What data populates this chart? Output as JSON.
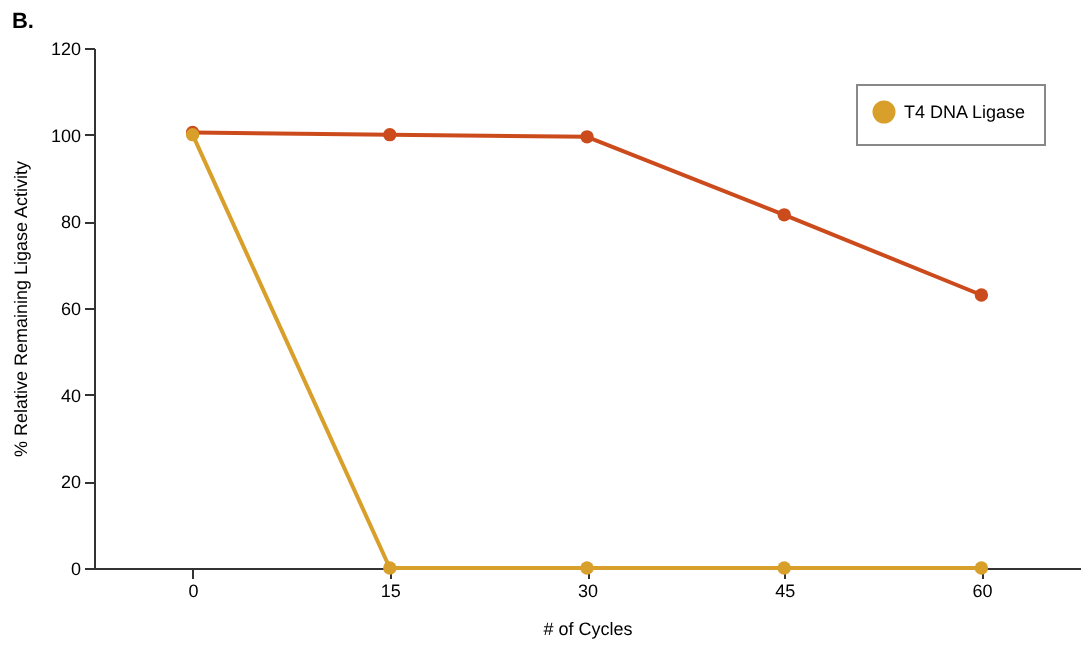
{
  "chart_data": {
    "type": "line",
    "title": "B.",
    "xlabel": "# of Cycles",
    "ylabel": "% Relative Remaining Ligase Activity",
    "x": [
      0,
      15,
      30,
      45,
      60
    ],
    "series": [
      {
        "name": "T4 DNA Ligase",
        "color": "#d89f2a",
        "values": [
          100,
          0,
          0,
          0,
          0
        ]
      },
      {
        "color": "#cc4b1c",
        "values": [
          100.5,
          100,
          99.5,
          81.5,
          63
        ]
      }
    ],
    "xlim": [
      -7.5,
      67.5
    ],
    "xticks": [
      0,
      15,
      30,
      45,
      60
    ],
    "ylim": [
      0,
      120
    ],
    "yticks": [
      0,
      20,
      40,
      60,
      80,
      100,
      120
    ],
    "grid": false,
    "legend": "top right",
    "marker": "circle",
    "line_style": "solid"
  }
}
